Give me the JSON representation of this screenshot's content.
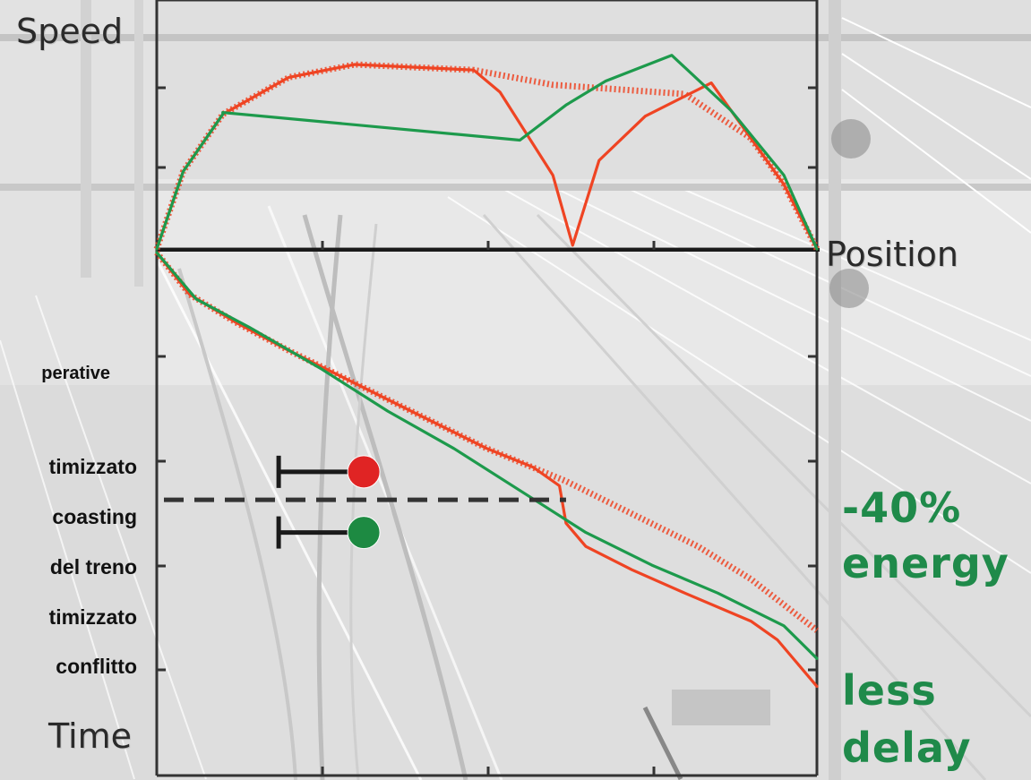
{
  "chart_data": [
    {
      "type": "line",
      "ylabel": "Speed",
      "xlabel": "Position",
      "x_domain": [
        0,
        1
      ],
      "y_domain": [
        0,
        1
      ],
      "series": [
        {
          "color": "#ef4423",
          "style": "solid",
          "points": [
            [
              0,
              0
            ],
            [
              0.04,
              0.42
            ],
            [
              0.1,
              0.73
            ],
            [
              0.2,
              0.93
            ],
            [
              0.3,
              1.0
            ],
            [
              0.48,
              0.97
            ],
            [
              0.52,
              0.85
            ],
            [
              0.6,
              0.4
            ],
            [
              0.63,
              0.02
            ],
            [
              0.67,
              0.48
            ],
            [
              0.74,
              0.72
            ],
            [
              0.84,
              0.9
            ],
            [
              0.9,
              0.6
            ],
            [
              0.95,
              0.35
            ],
            [
              1,
              0
            ]
          ]
        },
        {
          "color": "#ef4423",
          "style": "hatched",
          "points": [
            [
              0,
              0
            ],
            [
              0.04,
              0.42
            ],
            [
              0.1,
              0.73
            ],
            [
              0.2,
              0.93
            ],
            [
              0.3,
              1.0
            ],
            [
              0.48,
              0.97
            ],
            [
              0.6,
              0.89
            ],
            [
              0.8,
              0.84
            ],
            [
              0.9,
              0.6
            ],
            [
              0.95,
              0.35
            ],
            [
              1,
              0
            ]
          ]
        },
        {
          "color": "#1d9a4c",
          "style": "solid",
          "points": [
            [
              0,
              0
            ],
            [
              0.04,
              0.42
            ],
            [
              0.1,
              0.73
            ],
            [
              0.1,
              0.74
            ],
            [
              0.55,
              0.59
            ],
            [
              0.62,
              0.78
            ],
            [
              0.68,
              0.91
            ],
            [
              0.78,
              1.05
            ],
            [
              0.87,
              0.75
            ],
            [
              0.95,
              0.4
            ],
            [
              1,
              0
            ]
          ]
        }
      ]
    },
    {
      "type": "line",
      "ylabel": "Time",
      "x_domain": [
        0,
        1
      ],
      "y_domain": [
        0,
        1
      ],
      "series": [
        {
          "color": "#ef4423",
          "style": "hatched",
          "points": [
            [
              0,
              0
            ],
            [
              0.05,
              0.09
            ],
            [
              0.12,
              0.15
            ],
            [
              0.2,
              0.21
            ],
            [
              0.3,
              0.28
            ],
            [
              0.4,
              0.35
            ],
            [
              0.5,
              0.42
            ],
            [
              0.62,
              0.49
            ],
            [
              0.72,
              0.56
            ],
            [
              0.82,
              0.63
            ],
            [
              0.9,
              0.7
            ],
            [
              1,
              0.81
            ]
          ]
        },
        {
          "color": "#ef4423",
          "style": "solid",
          "points": [
            [
              0,
              0
            ],
            [
              0.05,
              0.09
            ],
            [
              0.12,
              0.15
            ],
            [
              0.2,
              0.21
            ],
            [
              0.3,
              0.28
            ],
            [
              0.4,
              0.35
            ],
            [
              0.5,
              0.42
            ],
            [
              0.57,
              0.46
            ],
            [
              0.61,
              0.5
            ],
            [
              0.62,
              0.58
            ],
            [
              0.65,
              0.63
            ],
            [
              0.72,
              0.68
            ],
            [
              0.8,
              0.73
            ],
            [
              0.9,
              0.79
            ],
            [
              0.94,
              0.83
            ],
            [
              1,
              0.93
            ]
          ]
        },
        {
          "color": "#1d9a4c",
          "style": "solid",
          "points": [
            [
              0,
              0
            ],
            [
              0.06,
              0.1
            ],
            [
              0.14,
              0.16
            ],
            [
              0.25,
              0.25
            ],
            [
              0.35,
              0.34
            ],
            [
              0.45,
              0.42
            ],
            [
              0.55,
              0.51
            ],
            [
              0.65,
              0.6
            ],
            [
              0.75,
              0.67
            ],
            [
              0.85,
              0.73
            ],
            [
              0.95,
              0.8
            ],
            [
              1,
              0.87
            ]
          ]
        }
      ],
      "reference_line": {
        "style": "dashed",
        "color": "#333333",
        "y": 0.53,
        "x_to": 0.62
      },
      "signals": [
        {
          "color": "#e02424",
          "y": 0.47,
          "x": 0.3
        },
        {
          "color": "#1d8a42",
          "y": 0.6,
          "x": 0.3
        }
      ]
    }
  ],
  "labels": {
    "speed": "Speed",
    "position": "Position",
    "time": "Time",
    "energy_pct": "-40%",
    "energy": "energy",
    "less": "less",
    "delay": "delay",
    "cut_1": "perative",
    "cut_2": "timizzato",
    "cut_3": "coasting",
    "cut_4": "del treno",
    "cut_5": "timizzato",
    "cut_6": "conflitto"
  }
}
